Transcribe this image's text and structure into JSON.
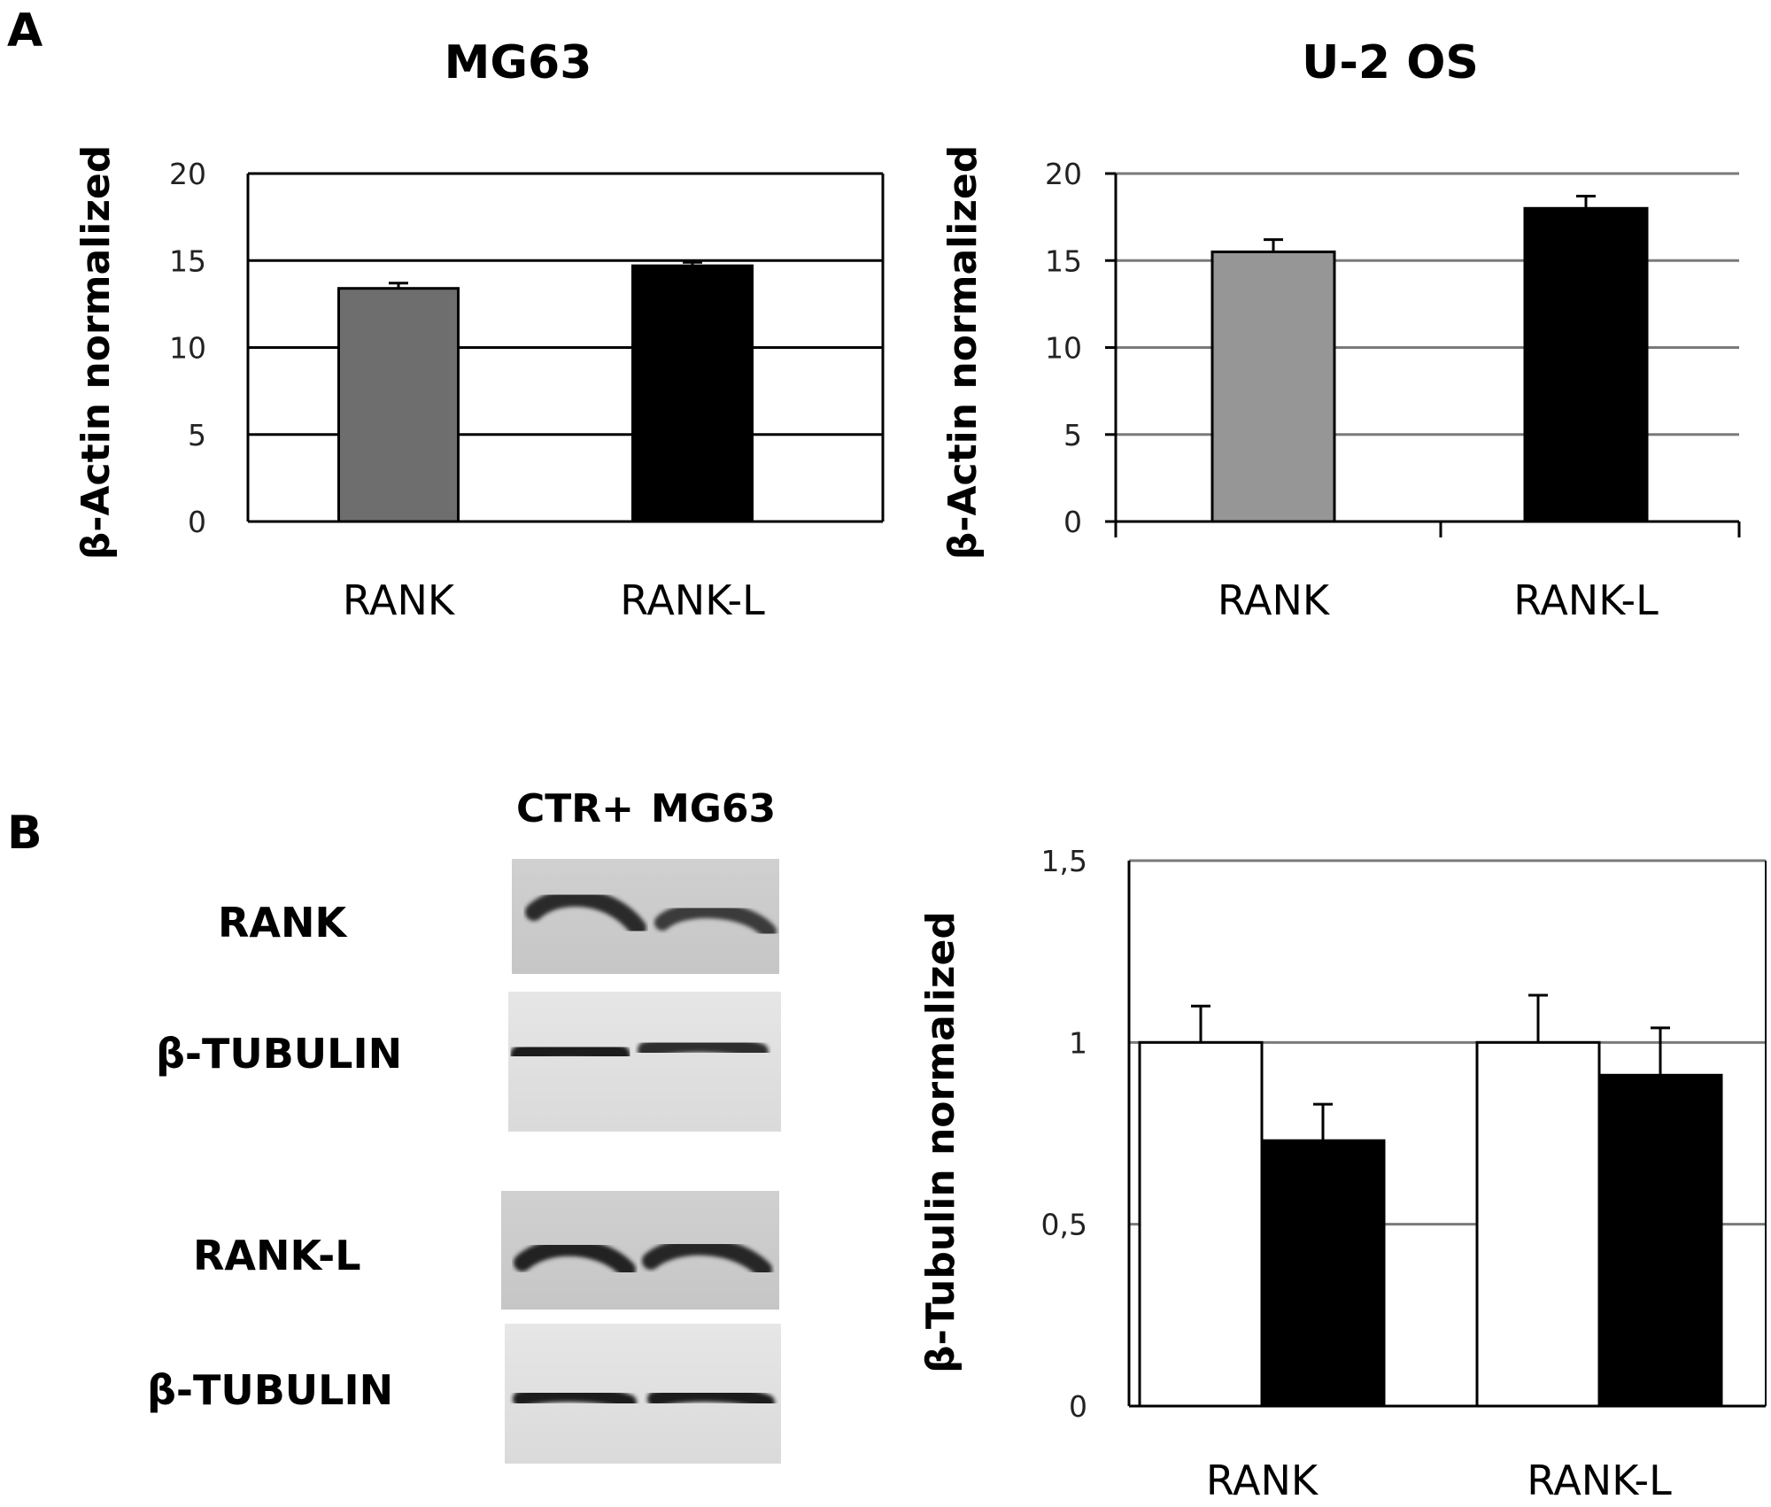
{
  "panel_labels": {
    "a": "A",
    "b": "B"
  },
  "blot": {
    "lane_labels": [
      "CTR+",
      "MG63"
    ],
    "row_labels": [
      "RANK",
      "β-TUBULIN",
      "RANK-L",
      "β-TUBULIN"
    ]
  },
  "chart_data": [
    {
      "type": "bar",
      "title": "MG63",
      "ylabel": "β-Actin normalized",
      "xlabel": "",
      "ylim": [
        0,
        20
      ],
      "y_ticks": [
        "0",
        "5",
        "10",
        "15",
        "20"
      ],
      "grid": true,
      "categories": [
        "RANK",
        "RANK-L"
      ],
      "values": [
        13.4,
        14.7
      ],
      "errors": [
        0.3,
        0.2
      ],
      "bar_colors": [
        "#6e6e6e",
        "#000000"
      ]
    },
    {
      "type": "bar",
      "title": "U-2 OS",
      "ylabel": "β-Actin normalized",
      "xlabel": "",
      "ylim": [
        0,
        20
      ],
      "y_ticks": [
        "0",
        "5",
        "10",
        "15",
        "20"
      ],
      "grid": true,
      "categories": [
        "RANK",
        "RANK-L"
      ],
      "values": [
        15.5,
        18.0
      ],
      "errors": [
        0.7,
        0.7
      ],
      "bar_colors": [
        "#969696",
        "#000000"
      ]
    },
    {
      "type": "bar",
      "title": "",
      "ylabel": "β-Tubulin normalized",
      "xlabel": "",
      "ylim": [
        0,
        1.5
      ],
      "y_ticks": [
        "0",
        "0,5",
        "1",
        "1,5"
      ],
      "grid": true,
      "categories": [
        "RANK",
        "RANK-L"
      ],
      "series": [
        {
          "values": [
            1.0,
            1.0
          ],
          "errors": [
            0.1,
            0.13
          ],
          "color": "#ffffff"
        },
        {
          "values": [
            0.73,
            0.91
          ],
          "errors": [
            0.1,
            0.13
          ],
          "color": "#000000"
        }
      ]
    }
  ]
}
